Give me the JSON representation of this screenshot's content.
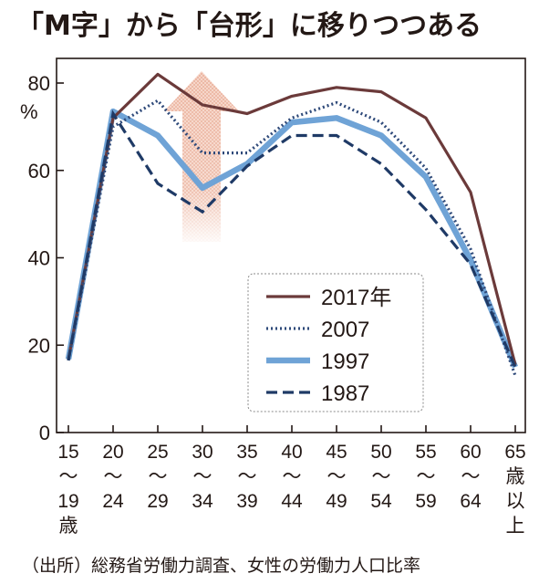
{
  "title": "「M字」から「台形」に移りつつある",
  "source": "（出所）総務省労働力調査、女性の労働力人口比率",
  "chart_data": {
    "type": "line",
    "ylabel": "%",
    "ylim": [
      0,
      85
    ],
    "yticks": [
      "0",
      "20",
      "40",
      "60",
      "80"
    ],
    "categories": [
      "15〜19歳",
      "20〜24",
      "25〜29",
      "30〜34",
      "35〜39",
      "40〜44",
      "45〜49",
      "50〜54",
      "55〜59",
      "60〜64",
      "65歳以上"
    ],
    "category_ticks": [
      [
        "15",
        "〜",
        "19",
        "歳"
      ],
      [
        "20",
        "〜",
        "24"
      ],
      [
        "25",
        "〜",
        "29"
      ],
      [
        "30",
        "〜",
        "34"
      ],
      [
        "35",
        "〜",
        "39"
      ],
      [
        "40",
        "〜",
        "44"
      ],
      [
        "45",
        "〜",
        "49"
      ],
      [
        "50",
        "〜",
        "54"
      ],
      [
        "55",
        "〜",
        "59"
      ],
      [
        "60",
        "〜",
        "64"
      ],
      [
        "65",
        "歳",
        "以",
        "上"
      ]
    ],
    "series": [
      {
        "name": "2017年",
        "color": "#6b3a3a",
        "style": "solid",
        "values": [
          16.7,
          72.0,
          82.0,
          75.0,
          73.0,
          77.0,
          79.0,
          78.0,
          72.0,
          55.0,
          15.5
        ]
      },
      {
        "name": "2007",
        "color": "#2f4a7a",
        "style": "dotted",
        "values": [
          16.5,
          70.0,
          76.0,
          64.0,
          64.0,
          72.0,
          75.5,
          71.0,
          60.5,
          42.0,
          13.0
        ]
      },
      {
        "name": "1997",
        "color": "#6fa3d6",
        "style": "thick",
        "values": [
          16.8,
          73.5,
          68.0,
          56.0,
          61.5,
          71.0,
          72.0,
          68.0,
          58.5,
          39.5,
          15.0
        ]
      },
      {
        "name": "1987",
        "color": "#1f3a66",
        "style": "dashed",
        "values": [
          16.5,
          73.0,
          57.0,
          50.5,
          61.0,
          68.0,
          68.0,
          61.5,
          51.0,
          38.5,
          15.0
        ]
      }
    ],
    "annotation": "up-arrow",
    "grid": false,
    "legend": "lower-right"
  }
}
